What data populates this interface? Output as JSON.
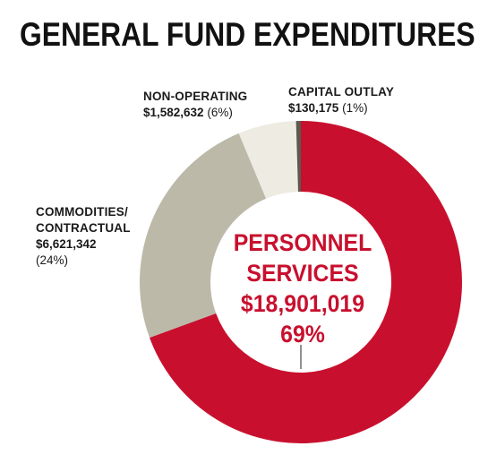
{
  "chart_data": {
    "type": "pie",
    "title": "GENERAL FUND EXPENDITURES",
    "slices": [
      {
        "label": "PERSONNEL SERVICES",
        "amount": "$18,901,019",
        "percent": "69%",
        "value": 18901019,
        "color": "#c8102e"
      },
      {
        "label": "COMMODITIES/ CONTRACTUAL",
        "amount": "$6,621,342",
        "percent": "(24%)",
        "value": 6621342,
        "color": "#bcb9a9"
      },
      {
        "label": "NON-OPERATING",
        "amount": "$1,582,632",
        "percent": "(6%)",
        "value": 1582632,
        "color": "#edebe2"
      },
      {
        "label": "CAPITAL OUTLAY",
        "amount": "$130,175",
        "percent": "(1%)",
        "value": 130175,
        "color": "#5b5a4f"
      }
    ]
  },
  "labels": {
    "personnel_line1": "PERSONNEL",
    "personnel_line2": "SERVICES",
    "commodities_line1": "COMMODITIES/",
    "commodities_line2": "CONTRACTUAL",
    "nonop_name": "NON-OPERATING",
    "capital_name": "CAPITAL OUTLAY"
  }
}
